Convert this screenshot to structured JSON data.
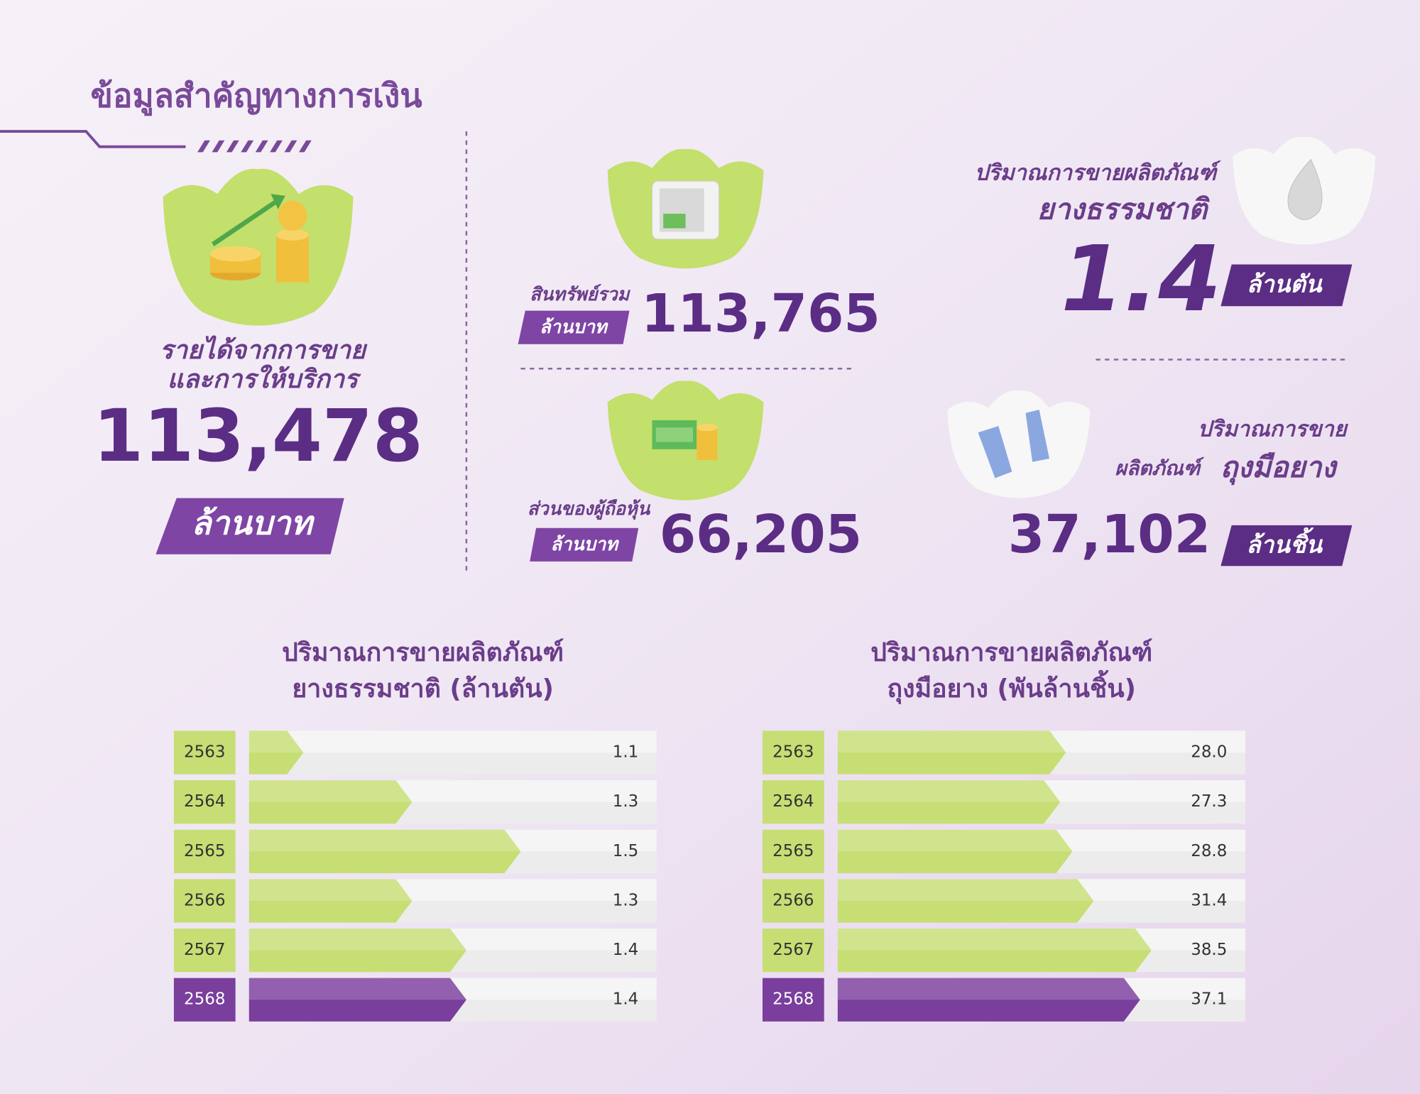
{
  "header": {
    "title": "ข้อมูลสำคัญทางการเงิน"
  },
  "revenue": {
    "label": [
      "รายได้จากการขาย",
      "และการให้บริการ"
    ],
    "value": "113,478",
    "unit": "ล้านบาท"
  },
  "assets": {
    "label": "สินทรัพย์รวม",
    "unit": "ล้านบาท",
    "value": "113,765"
  },
  "equity": {
    "label": "ส่วนของผู้ถือหุ้น",
    "unit": "ล้านบาท",
    "value": "66,205"
  },
  "rubber": {
    "label": [
      "ปริมาณการขายผลิตภัณฑ์",
      "ยางธรรมชาติ"
    ],
    "value": "1.4",
    "unit": "ล้านตัน"
  },
  "gloves": {
    "label": [
      "ปริมาณการขาย",
      "ผลิตภัณฑ์",
      "ถุงมือยาง"
    ],
    "value": "37,102",
    "unit": "ล้านชิ้น"
  },
  "chart_data": [
    {
      "type": "bar",
      "orientation": "horizontal",
      "title": [
        "ปริมาณการขายผลิตภัณฑ์",
        "ยางธรรมชาติ (ล้านตัน)"
      ],
      "categories": [
        "2563",
        "2564",
        "2565",
        "2566",
        "2567",
        "2568"
      ],
      "values": [
        1.1,
        1.3,
        1.5,
        1.3,
        1.4,
        1.4
      ],
      "colors": [
        "#c6de74",
        "#c6de74",
        "#c6de74",
        "#c6de74",
        "#c6de74",
        "#7a3e9d"
      ],
      "xlim": [
        1.0,
        1.75
      ]
    },
    {
      "type": "bar",
      "orientation": "horizontal",
      "title": [
        "ปริมาณการขายผลิตภัณฑ์",
        "ถุงมือยาง (พันล้านชิ้น)"
      ],
      "categories": [
        "2563",
        "2564",
        "2565",
        "2566",
        "2567",
        "2568"
      ],
      "values": [
        28.0,
        27.3,
        28.8,
        31.4,
        38.5,
        37.1
      ],
      "value_labels": [
        "28.0",
        "27.3",
        "28.8",
        "31.4",
        "38.5",
        "37.1"
      ],
      "colors": [
        "#c6de74",
        "#c6de74",
        "#c6de74",
        "#c6de74",
        "#c6de74",
        "#7a3e9d"
      ],
      "xlim": [
        0,
        50
      ]
    }
  ]
}
